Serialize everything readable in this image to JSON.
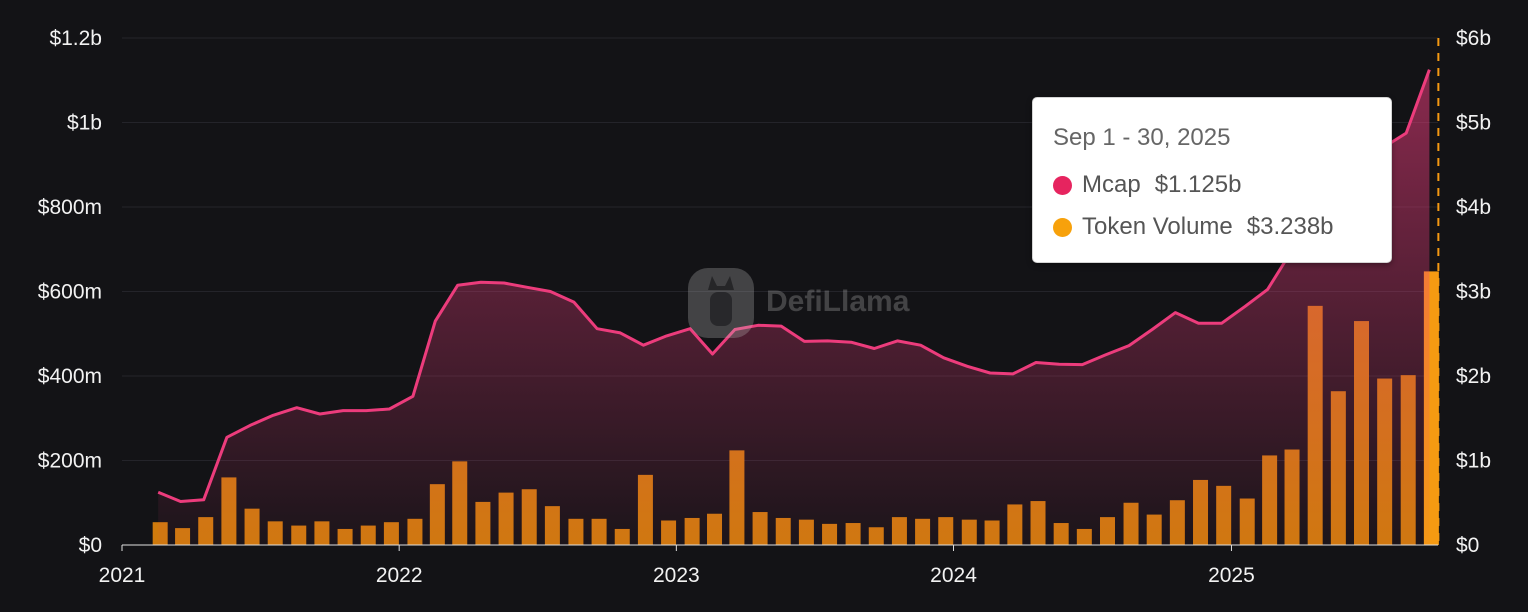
{
  "chart_data": {
    "type": "bar+line",
    "x": [
      "2021-02",
      "2021-03",
      "2021-04",
      "2021-05",
      "2021-06",
      "2021-07",
      "2021-08",
      "2021-09",
      "2021-10",
      "2021-11",
      "2021-12",
      "2022-01",
      "2022-02",
      "2022-03",
      "2022-04",
      "2022-05",
      "2022-06",
      "2022-07",
      "2022-08",
      "2022-09",
      "2022-10",
      "2022-11",
      "2022-12",
      "2023-01",
      "2023-02",
      "2023-03",
      "2023-04",
      "2023-05",
      "2023-06",
      "2023-07",
      "2023-08",
      "2023-09",
      "2023-10",
      "2023-11",
      "2023-12",
      "2024-01",
      "2024-02",
      "2024-03",
      "2024-04",
      "2024-05",
      "2024-06",
      "2024-07",
      "2024-08",
      "2024-09",
      "2024-10",
      "2024-11",
      "2024-12",
      "2025-01",
      "2025-02",
      "2025-03",
      "2025-04",
      "2025-05",
      "2025-06",
      "2025-07",
      "2025-08",
      "2025-09"
    ],
    "x_ticks": [
      "2021",
      "2022",
      "2023",
      "2024",
      "2025"
    ],
    "series": [
      {
        "name": "Mcap",
        "type": "line",
        "axis": "left",
        "color": "#ec3c7c",
        "values": [
          125,
          103,
          107,
          255,
          283,
          307,
          325,
          310,
          318,
          318,
          322,
          352,
          530,
          615,
          622,
          620,
          610,
          600,
          575,
          512,
          502,
          473,
          495,
          512,
          452,
          510,
          520,
          518,
          482,
          483,
          480,
          465,
          483,
          473,
          443,
          423,
          407,
          405,
          432,
          428,
          427,
          450,
          472,
          510,
          550,
          525,
          525,
          565,
          605,
          690,
          785,
          855,
          912,
          940,
          975,
          1125
        ]
      },
      {
        "name": "Token Volume",
        "type": "bar",
        "axis": "right",
        "color": "#f7931a",
        "values": [
          0.27,
          0.2,
          0.33,
          0.8,
          0.43,
          0.28,
          0.23,
          0.28,
          0.19,
          0.23,
          0.27,
          0.31,
          0.72,
          0.99,
          0.51,
          0.62,
          0.66,
          0.46,
          0.31,
          0.31,
          0.19,
          0.83,
          0.29,
          0.32,
          0.37,
          1.12,
          0.39,
          0.32,
          0.3,
          0.25,
          0.26,
          0.21,
          0.33,
          0.31,
          0.33,
          0.3,
          0.29,
          0.48,
          0.52,
          0.26,
          0.19,
          0.33,
          0.5,
          0.36,
          0.53,
          0.77,
          0.7,
          0.55,
          1.06,
          1.13,
          2.83,
          1.82,
          2.65,
          1.97,
          2.01,
          3.238
        ]
      }
    ],
    "y_left": {
      "ticks": [
        "$0",
        "$200m",
        "$400m",
        "$600m",
        "$800m",
        "$1b",
        "$1.2b"
      ],
      "range": [
        0,
        1200
      ]
    },
    "y_right": {
      "ticks": [
        "$0",
        "$1b",
        "$2b",
        "$3b",
        "$4b",
        "$5b",
        "$6b"
      ],
      "range": [
        0,
        6
      ]
    },
    "grid": true,
    "tooltip": {
      "title": "Sep 1 - 30, 2025",
      "rows": [
        {
          "name": "Mcap",
          "value": "$1.125b",
          "color": "#e6245f"
        },
        {
          "name": "Token Volume",
          "value": "$3.238b",
          "color": "#f7a10b"
        }
      ]
    },
    "watermark": "DefiLlama"
  }
}
